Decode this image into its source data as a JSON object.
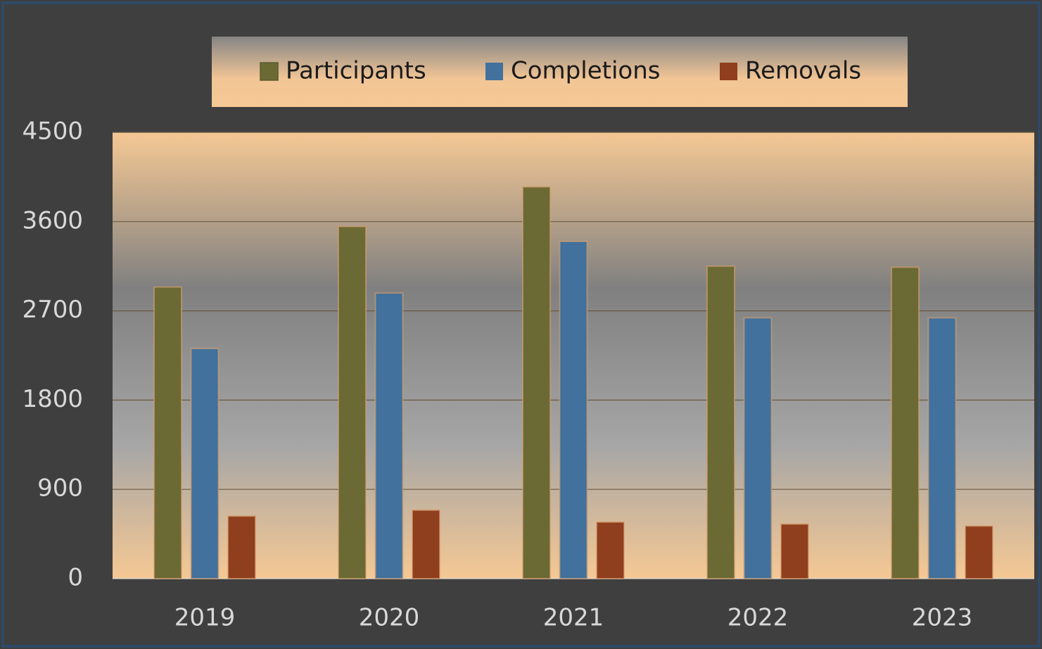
{
  "chart_data": {
    "type": "bar",
    "categories": [
      "2019",
      "2020",
      "2021",
      "2022",
      "2023"
    ],
    "series": [
      {
        "name": "Participants",
        "color": "#6b6a34",
        "values": [
          2940,
          3550,
          3950,
          3150,
          3140
        ]
      },
      {
        "name": "Completions",
        "color": "#41719c",
        "values": [
          2320,
          2880,
          3400,
          2630,
          2630
        ]
      },
      {
        "name": "Removals",
        "color": "#8f3e1e",
        "values": [
          630,
          690,
          570,
          550,
          530
        ]
      }
    ],
    "ylim": [
      0,
      4500
    ],
    "yticks": [
      0,
      900,
      1800,
      2700,
      3600,
      4500
    ],
    "grid": true,
    "legend": "top"
  }
}
